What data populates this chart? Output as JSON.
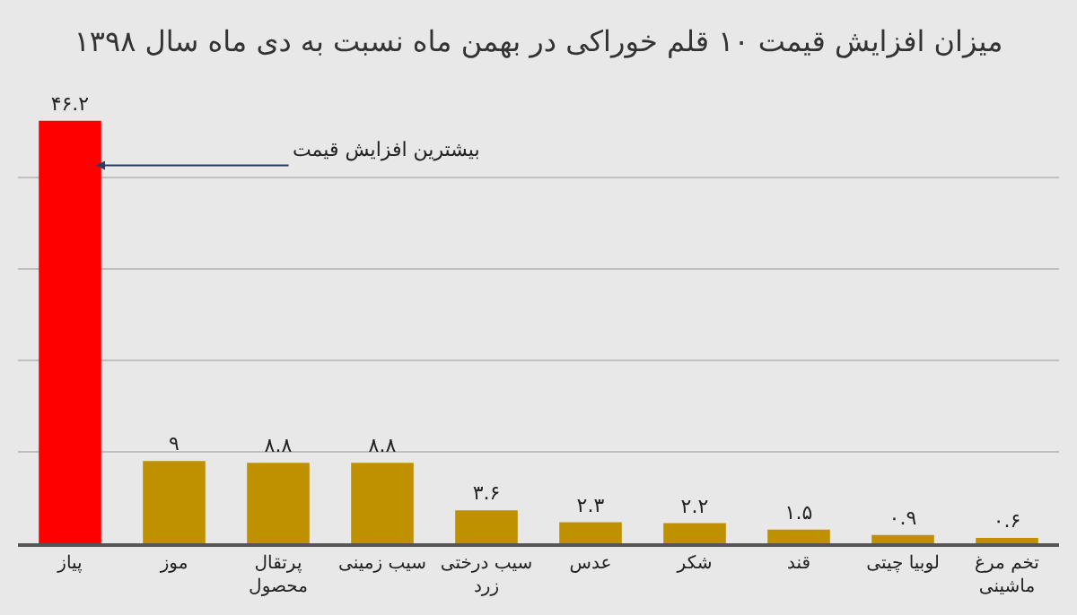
{
  "chart_data": {
    "type": "bar",
    "title": "میزان افزایش قیمت ۱۰ قلم خوراکی در بهمن ماه نسبت به دی ماه سال ۱۳۹۸",
    "categories": [
      "پیاز",
      "موز",
      "پرتقال محصول",
      "سیب زمینی",
      "سیب درختی زرد",
      "عدس",
      "شکر",
      "قند",
      "لوبیا چیتی",
      "تخم مرغ ماشینی"
    ],
    "values": [
      46.2,
      9,
      8.8,
      8.8,
      3.6,
      2.3,
      2.2,
      1.5,
      0.9,
      0.6
    ],
    "value_labels": [
      "۴۶.۲",
      "۹",
      "۸.۸",
      "۸.۸",
      "۳.۶",
      "۲.۳",
      "۲.۲",
      "۱.۵",
      "۰.۹",
      "۰.۶"
    ],
    "colors": [
      "#ff0000",
      "#bf9000",
      "#bf9000",
      "#bf9000",
      "#bf9000",
      "#bf9000",
      "#bf9000",
      "#bf9000",
      "#bf9000",
      "#bf9000"
    ],
    "tick_labels": "x",
    "grid": "y",
    "annotations": [
      "بیشترین افزایش قیمت"
    ]
  }
}
